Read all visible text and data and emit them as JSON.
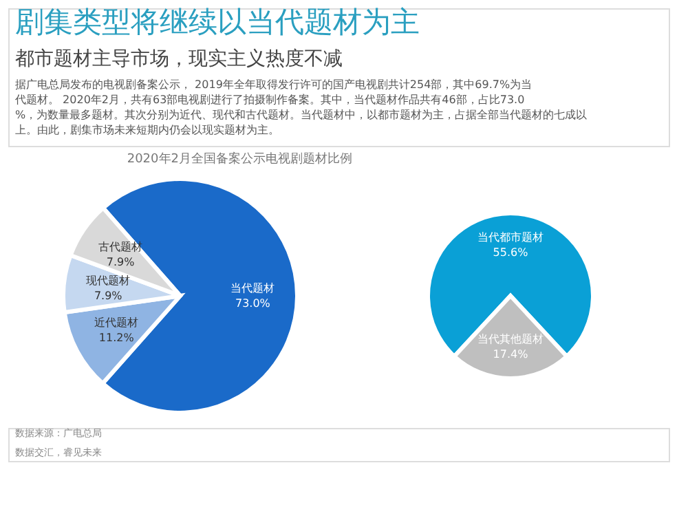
{
  "chart_data": [
    {
      "type": "pie",
      "title": "2020年2月全国备案公示电视剧题材比例",
      "categories": [
        "当代题材",
        "近代题材",
        "现代题材",
        "古代题材"
      ],
      "values": [
        73.0,
        11.2,
        7.9,
        7.9
      ],
      "colors": [
        "#1a6ac9",
        "#8fb4e3",
        "#c5d8f0",
        "#d9d9d9"
      ],
      "value_labels": [
        "73.0%",
        "11.2%",
        "7.9%",
        "7.9%"
      ],
      "annotations": [
        "剧集类型将继续以当代题材为主",
        "都市题材主导市场，现实主义热度不减",
        "据广电总局发布的电视剧备案公示， 2019年全年取得发行许可的国产电视剧共计254部，其中69.7%为当代题材。 2020年2月，共有63部电视剧进行了拍摄制作备案。其中，当代题材作品共有46部，占比73.0%，为数量最多题材。其次分别为近代、现代和古代题材。当代题材中，以都市题材为主，占据全部当代题材的七成以上。由此，剧集市场未来短期内仍会以现实题材为主。",
        "数据来源：广电总局",
        "数据交汇，睿见未来"
      ]
    },
    {
      "type": "pie",
      "categories": [
        "当代都市题材",
        "当代其他题材"
      ],
      "values": [
        55.6,
        17.4
      ],
      "colors": [
        "#0aa0d6",
        "#bfbfbf"
      ],
      "value_labels": [
        "55.6%",
        "17.4%"
      ]
    }
  ]
}
